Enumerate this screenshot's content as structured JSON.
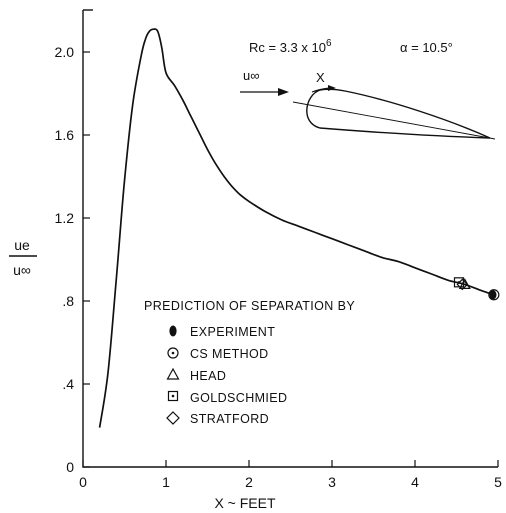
{
  "chart_data": {
    "type": "line",
    "xlabel": "X ~ FEET",
    "ylabel_num": "ue",
    "ylabel_den": "u∞",
    "xlim": [
      0,
      5
    ],
    "ylim": [
      0,
      2.2
    ],
    "xticks": [
      0,
      1,
      2,
      3,
      4,
      5
    ],
    "xtick_labels": [
      "0",
      "1",
      "2",
      "3",
      "4",
      "5"
    ],
    "yticks": [
      0,
      0.4,
      0.8,
      1.2,
      1.6,
      2.0
    ],
    "ytick_labels": [
      "0",
      ".4",
      ".8",
      "1.2",
      "1.6",
      "2.0"
    ],
    "grid": false,
    "series": [
      {
        "x": [
          0.2,
          0.3,
          0.4,
          0.5,
          0.6,
          0.7,
          0.75,
          0.8,
          0.85,
          0.9,
          0.95,
          1.0,
          1.1,
          1.2,
          1.3,
          1.4,
          1.5,
          1.6,
          1.7,
          1.8,
          1.9,
          2.0,
          2.2,
          2.4,
          2.6,
          2.8,
          3.0,
          3.2,
          3.4,
          3.6,
          3.8,
          4.0,
          4.2,
          4.4,
          4.6,
          4.8,
          4.95
        ],
        "y": [
          0.19,
          0.45,
          0.9,
          1.38,
          1.75,
          1.98,
          2.06,
          2.1,
          2.11,
          2.1,
          2.02,
          1.9,
          1.84,
          1.77,
          1.69,
          1.61,
          1.53,
          1.46,
          1.4,
          1.35,
          1.31,
          1.28,
          1.23,
          1.19,
          1.16,
          1.13,
          1.1,
          1.07,
          1.04,
          1.01,
          0.99,
          0.96,
          0.93,
          0.9,
          0.88,
          0.85,
          0.83
        ]
      }
    ],
    "markers": [
      {
        "method": "EXPERIMENT",
        "symbol": "filled-ellipse",
        "x": 4.94,
        "y": 0.83
      },
      {
        "method": "CS METHOD",
        "symbol": "circle-dot",
        "x": 4.95,
        "y": 0.83
      },
      {
        "method": "HEAD",
        "symbol": "triangle",
        "x": 4.6,
        "y": 0.88
      },
      {
        "method": "GOLDSCHMIED",
        "symbol": "square-dot",
        "x": 4.53,
        "y": 0.89
      },
      {
        "method": "STRATFORD",
        "symbol": "diamond",
        "x": 4.57,
        "y": 0.88
      }
    ],
    "legend_title": "PREDICTION OF SEPARATION BY",
    "legend_placement": "bottom-center",
    "annotations": {
      "reynolds": "Rc = 3.3 x 10",
      "reynolds_exp": "6",
      "alpha": "α = 10.5°",
      "freestream": "u∞",
      "x_label": "X"
    }
  }
}
